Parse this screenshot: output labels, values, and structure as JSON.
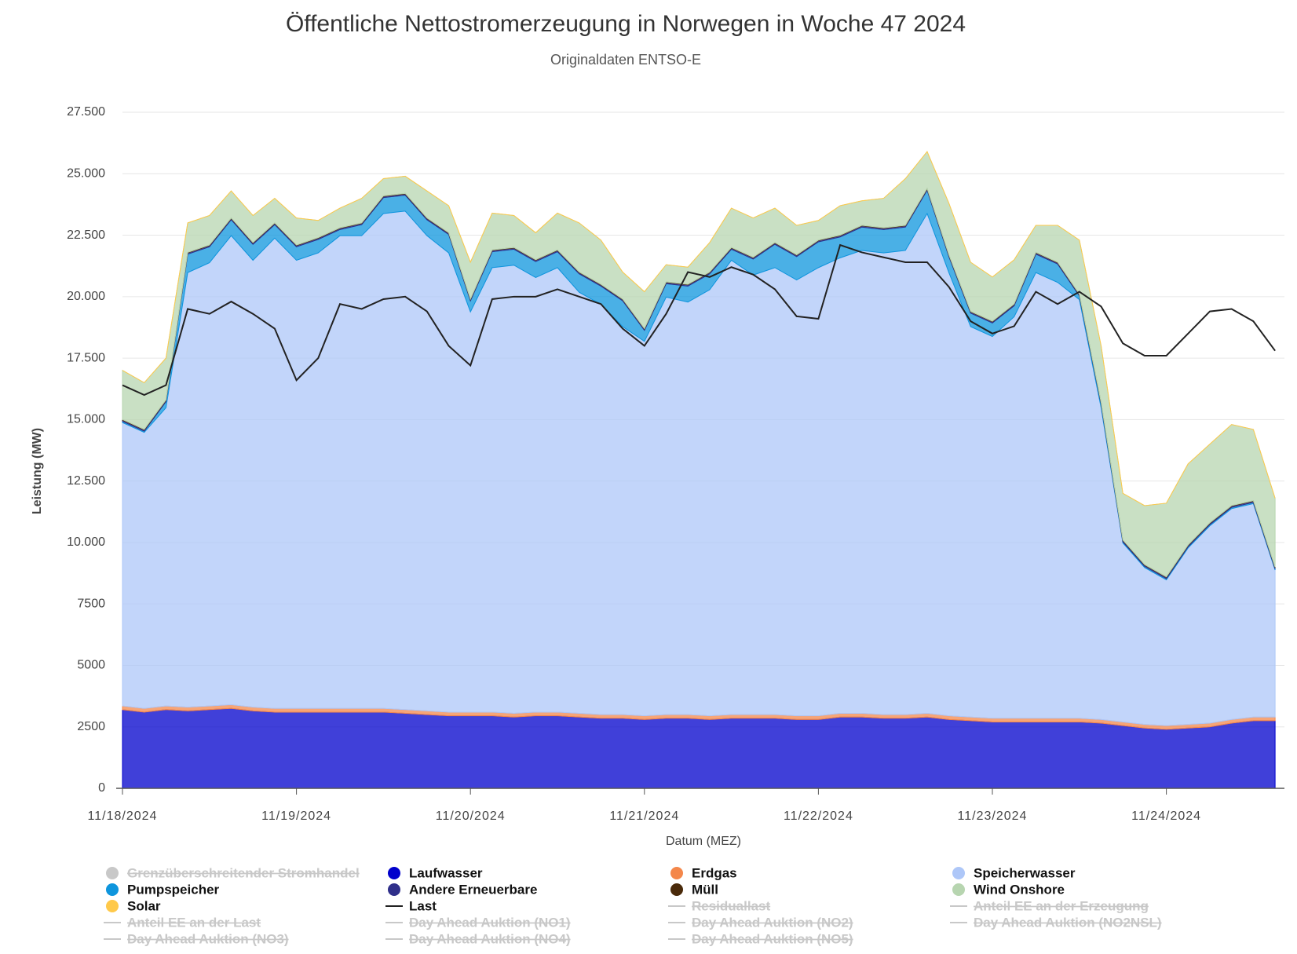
{
  "chart_data": {
    "type": "area",
    "title": "Öffentliche Nettostromerzeugung in Norwegen in Woche 47 2024",
    "subtitle": "Originaldaten ENTSO-E",
    "y_label": "Leistung (MW)",
    "x_label": "Datum (MEZ)",
    "categories": [
      "11/18/2024",
      null,
      null,
      null,
      null,
      null,
      null,
      null,
      "11/19/2024",
      null,
      null,
      null,
      null,
      null,
      null,
      null,
      "11/20/2024",
      null,
      null,
      null,
      null,
      null,
      null,
      null,
      "11/21/2024",
      null,
      null,
      null,
      null,
      null,
      null,
      null,
      "11/22/2024",
      null,
      null,
      null,
      null,
      null,
      null,
      null,
      "11/23/2024",
      null,
      null,
      null,
      null,
      null,
      null,
      null,
      "11/24/2024",
      null,
      null,
      null,
      null,
      null
    ],
    "ylim": [
      0,
      27500
    ],
    "yticks": [
      0,
      2500,
      5000,
      7500,
      {
        "value": 10000,
        "label": "10.000"
      },
      {
        "value": 12500,
        "label": "12.500"
      },
      {
        "value": 15000,
        "label": "15.000"
      },
      {
        "value": 17500,
        "label": "17.500"
      },
      {
        "value": 20000,
        "label": "20.000"
      },
      {
        "value": 22500,
        "label": "22.500"
      },
      {
        "value": 25000,
        "label": "25.000"
      },
      {
        "value": 27500,
        "label": "27.500"
      }
    ],
    "grid": true,
    "stacked": true,
    "series": [
      {
        "name": "Grenzüberschreitender Stromhandel",
        "type": "area",
        "visible": false
      },
      {
        "name": "Laufwasser",
        "type": "area",
        "color": "#0000cc",
        "values": [
          3200,
          3100,
          3200,
          3150,
          3200,
          3250,
          3150,
          3100,
          3100,
          3100,
          3100,
          3100,
          3100,
          3050,
          3000,
          2950,
          2950,
          2950,
          2900,
          2950,
          2950,
          2900,
          2850,
          2850,
          2800,
          2850,
          2850,
          2800,
          2850,
          2850,
          2850,
          2800,
          2800,
          2900,
          2900,
          2850,
          2850,
          2900,
          2800,
          2750,
          2700,
          2700,
          2700,
          2700,
          2700,
          2650,
          2550,
          2450,
          2400,
          2450,
          2500,
          2650,
          2750,
          2750
        ]
      },
      {
        "name": "Erdgas",
        "type": "area",
        "color": "#f4874a",
        "values": [
          150,
          150,
          150,
          150,
          150,
          150,
          150,
          150,
          150,
          150,
          150,
          150,
          150,
          150,
          150,
          150,
          150,
          150,
          150,
          150,
          150,
          150,
          150,
          150,
          150,
          150,
          150,
          150,
          150,
          150,
          150,
          150,
          150,
          150,
          150,
          150,
          150,
          150,
          150,
          150,
          150,
          150,
          150,
          150,
          150,
          150,
          150,
          150,
          150,
          150,
          150,
          150,
          150,
          150
        ]
      },
      {
        "name": "Speicherwasser",
        "type": "area",
        "color": "#aec7f8",
        "values": [
          11530,
          11230,
          12130,
          17680,
          18030,
          19080,
          18180,
          19130,
          18230,
          18530,
          19230,
          19230,
          20130,
          20280,
          19330,
          18680,
          16280,
          18080,
          18230,
          17680,
          18080,
          17130,
          16680,
          15780,
          15230,
          16980,
          16780,
          17330,
          18480,
          17880,
          18180,
          17730,
          18230,
          18530,
          18830,
          18780,
          18880,
          20330,
          18030,
          15880,
          15530,
          16330,
          18130,
          17730,
          17030,
          12680,
          7280,
          6380,
          5930,
          7180,
          8030,
          8580,
          8680,
          5980
        ]
      },
      {
        "name": "Pumpspeicher",
        "type": "area",
        "color": "#0e95dd",
        "values": [
          50,
          50,
          250,
          750,
          650,
          650,
          650,
          550,
          550,
          550,
          250,
          450,
          650,
          650,
          650,
          750,
          450,
          650,
          650,
          650,
          650,
          750,
          750,
          1050,
          450,
          550,
          650,
          650,
          450,
          650,
          950,
          950,
          1050,
          850,
          950,
          950,
          950,
          950,
          650,
          550,
          550,
          450,
          750,
          750,
          150,
          150,
          50,
          50,
          50,
          50,
          50,
          50,
          50,
          50
        ]
      },
      {
        "name": "Andere Erneuerbare",
        "type": "area",
        "color": "#2f2f8a",
        "values": [
          50,
          50,
          50,
          50,
          50,
          50,
          50,
          50,
          50,
          50,
          50,
          50,
          50,
          50,
          50,
          50,
          50,
          50,
          50,
          50,
          50,
          50,
          50,
          50,
          50,
          50,
          50,
          50,
          50,
          50,
          50,
          50,
          50,
          50,
          50,
          50,
          50,
          50,
          50,
          50,
          50,
          50,
          50,
          50,
          50,
          50,
          50,
          50,
          50,
          50,
          50,
          50,
          50,
          50
        ]
      },
      {
        "name": "Müll",
        "type": "area",
        "color": "#4a2a0a",
        "values": [
          20,
          20,
          20,
          20,
          20,
          20,
          20,
          20,
          20,
          20,
          20,
          20,
          20,
          20,
          20,
          20,
          20,
          20,
          20,
          20,
          20,
          20,
          20,
          20,
          20,
          20,
          20,
          20,
          20,
          20,
          20,
          20,
          20,
          20,
          20,
          20,
          20,
          20,
          20,
          20,
          20,
          20,
          20,
          20,
          20,
          20,
          20,
          20,
          20,
          20,
          20,
          20,
          20,
          20
        ]
      },
      {
        "name": "Wind Onshore",
        "type": "area",
        "color": "#b7d5b0",
        "values": [
          2000,
          1900,
          1700,
          1200,
          1200,
          1100,
          1100,
          1000,
          1100,
          700,
          800,
          1000,
          700,
          700,
          1100,
          1100,
          1500,
          1500,
          1300,
          1100,
          1500,
          2000,
          1800,
          1100,
          1500,
          700,
          700,
          1200,
          1600,
          1600,
          1400,
          1200,
          800,
          1200,
          1000,
          1200,
          1900,
          1500,
          2100,
          2000,
          1800,
          1800,
          1100,
          1500,
          2200,
          2300,
          1900,
          2400,
          3000,
          3300,
          3200,
          3300,
          2900,
          2800
        ]
      },
      {
        "name": "Solar",
        "type": "area",
        "color": "#ffc94a",
        "values": [
          0,
          0,
          0,
          0,
          0,
          0,
          0,
          0,
          0,
          0,
          0,
          0,
          0,
          0,
          0,
          0,
          0,
          0,
          0,
          0,
          0,
          0,
          0,
          0,
          0,
          0,
          0,
          0,
          0,
          0,
          0,
          0,
          0,
          0,
          0,
          0,
          0,
          0,
          0,
          0,
          0,
          0,
          0,
          0,
          0,
          0,
          0,
          0,
          0,
          0,
          0,
          0,
          0,
          0
        ]
      },
      {
        "name": "Last",
        "type": "line",
        "color": "#222222",
        "values": [
          16400,
          16000,
          16400,
          19500,
          19300,
          19800,
          19300,
          18700,
          16600,
          17500,
          19700,
          19500,
          19900,
          20000,
          19400,
          18000,
          17200,
          19900,
          20000,
          20000,
          20300,
          20000,
          19700,
          18700,
          18000,
          19300,
          21000,
          20800,
          21200,
          20900,
          20300,
          19200,
          19100,
          22100,
          21800,
          21600,
          21400,
          21400,
          20400,
          19000,
          18500,
          18800,
          20200,
          19700,
          20200,
          19600,
          18100,
          17600,
          17600,
          18500,
          19400,
          19500,
          19000,
          17800
        ]
      },
      {
        "name": "Residuallast",
        "type": "line",
        "visible": false
      },
      {
        "name": "Anteil EE an der Erzeugung",
        "type": "line",
        "visible": false
      },
      {
        "name": "Anteil EE an der Last",
        "type": "line",
        "visible": false
      },
      {
        "name": "Day Ahead Auktion (NO1)",
        "type": "line",
        "visible": false
      },
      {
        "name": "Day Ahead Auktion (NO2)",
        "type": "line",
        "visible": false
      },
      {
        "name": "Day Ahead Auktion (NO2NSL)",
        "type": "line",
        "visible": false
      },
      {
        "name": "Day Ahead Auktion (NO3)",
        "type": "line",
        "visible": false
      },
      {
        "name": "Day Ahead Auktion (NO4)",
        "type": "line",
        "visible": false
      },
      {
        "name": "Day Ahead Auktion (NO5)",
        "type": "line",
        "visible": false
      }
    ]
  }
}
